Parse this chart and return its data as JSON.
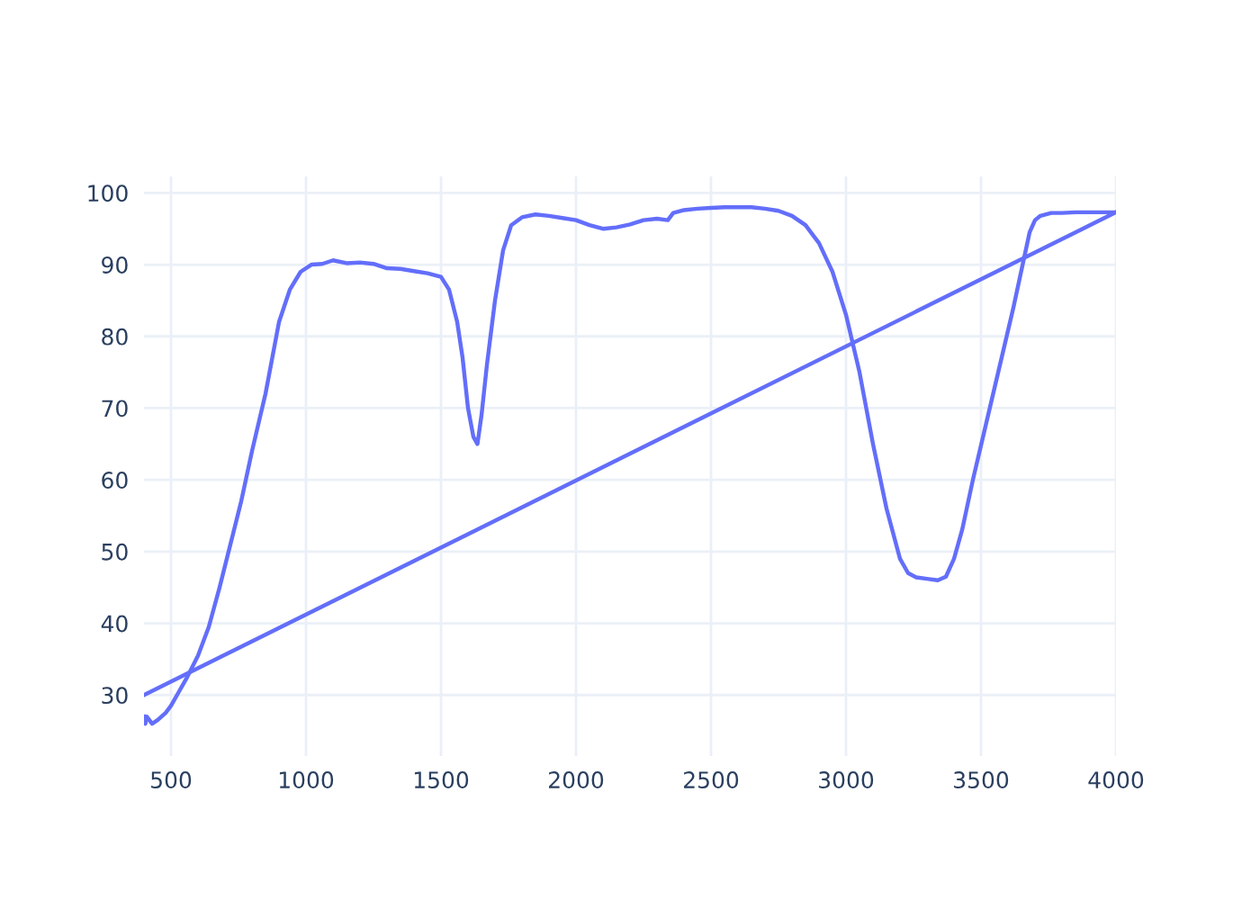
{
  "chart_data": {
    "type": "line",
    "xlim": [
      400,
      4000
    ],
    "ylim": [
      21.5,
      102.3
    ],
    "xticks": [
      500,
      1000,
      1500,
      2000,
      2500,
      3000,
      3500,
      4000
    ],
    "yticks": [
      30,
      40,
      50,
      60,
      70,
      80,
      90,
      100
    ],
    "grid": true,
    "legend": false,
    "series": [
      {
        "color": "#636efa",
        "x": [
          400,
          4000
        ],
        "values": [
          30,
          97.3
        ]
      },
      {
        "color": "#636efa",
        "x": [
          400,
          405,
          410,
          420,
          430,
          450,
          480,
          500,
          530,
          560,
          600,
          640,
          680,
          720,
          760,
          800,
          850,
          900,
          940,
          980,
          1020,
          1060,
          1100,
          1150,
          1200,
          1250,
          1300,
          1350,
          1400,
          1450,
          1500,
          1530,
          1560,
          1580,
          1600,
          1620,
          1635,
          1650,
          1670,
          1700,
          1730,
          1760,
          1800,
          1850,
          1900,
          1950,
          2000,
          2050,
          2100,
          2150,
          2200,
          2250,
          2300,
          2340,
          2360,
          2400,
          2450,
          2500,
          2550,
          2600,
          2650,
          2700,
          2750,
          2800,
          2850,
          2900,
          2950,
          3000,
          3050,
          3100,
          3150,
          3200,
          3230,
          3260,
          3300,
          3340,
          3370,
          3400,
          3430,
          3470,
          3520,
          3570,
          3620,
          3660,
          3680,
          3700,
          3720,
          3760,
          3800,
          3850,
          3900,
          3950,
          4000
        ],
        "values": [
          27,
          26,
          27,
          26.5,
          26,
          26.5,
          27.5,
          28.5,
          30.5,
          32.5,
          35.5,
          39.5,
          45,
          51,
          57,
          64,
          72,
          82,
          86.5,
          89,
          90,
          90.1,
          90.6,
          90.2,
          90.3,
          90.1,
          89.5,
          89.4,
          89.1,
          88.8,
          88.3,
          86.5,
          82,
          77,
          70,
          66,
          65,
          69,
          76,
          85,
          92,
          95.5,
          96.6,
          97,
          96.8,
          96.5,
          96.2,
          95.5,
          95,
          95.2,
          95.6,
          96.2,
          96.4,
          96.2,
          97.2,
          97.6,
          97.8,
          97.9,
          98,
          98,
          98,
          97.8,
          97.5,
          96.8,
          95.5,
          93,
          89,
          83,
          75,
          65,
          56,
          49,
          47,
          46.4,
          46.2,
          46,
          46.5,
          49,
          53,
          60,
          68,
          76,
          84,
          91,
          94.5,
          96.2,
          96.8,
          97.2,
          97.2,
          97.3,
          97.3,
          97.3,
          97.3
        ]
      }
    ]
  }
}
